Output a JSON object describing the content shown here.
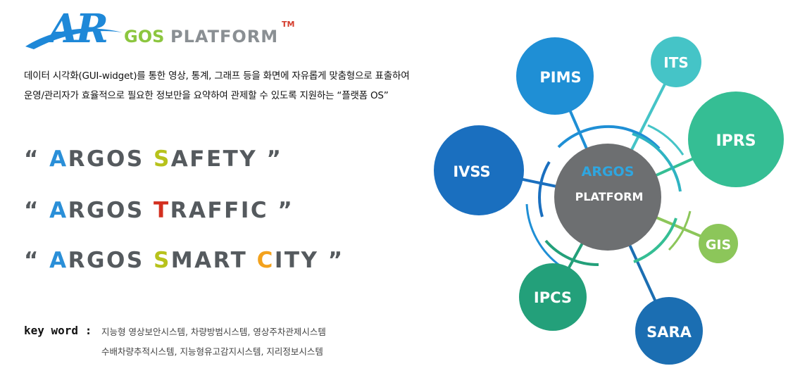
{
  "logo": {
    "mark": "AR",
    "brand_rest": "GOS",
    "brand_word": "PLATFORM",
    "trademark": "TM"
  },
  "description": {
    "line1": "데이터 시각화(GUI-widget)를 통한 영상, 통계, 그래프 등을 화면에 자유롭게 맞춤형으로 표출하여",
    "line2": "운영/관리자가 효율적으로 필요한 정보만을 요약하여 관제할 수 있도록 지원하는 “플랫폼 OS”"
  },
  "slogans": [
    {
      "open": "“ ",
      "a": "A",
      "mid": "RGOS ",
      "key": "S",
      "rest": "AFETY",
      "close": " ”"
    },
    {
      "open": "“ ",
      "a": "A",
      "mid": "RGOS ",
      "key": "T",
      "rest": "RAFFIC",
      "close": " ”"
    },
    {
      "open": "“ ",
      "a": "A",
      "mid": "RGOS ",
      "key": "S",
      "rest": "MART ",
      "key2": "C",
      "rest2": "ITY",
      "close": " ”"
    }
  ],
  "keywords": {
    "label": "key word :",
    "line1": "지능형 영상보안시스템, 차량방범시스템, 영상주차관제시스템",
    "line2": "수배차량추적시스템, 지능형유고감지시스템, 지리정보시스템"
  },
  "diagram": {
    "center_line1": "ARGOS",
    "center_line2": "PLATFORM",
    "nodes": {
      "pims": "PIMS",
      "its": "ITS",
      "iprs": "IPRS",
      "ivss": "IVSS",
      "gis": "GIS",
      "ipcs": "IPCS",
      "sara": "SARA"
    }
  },
  "colors": {
    "logo_blue": "#1e88d8",
    "logo_green": "#8cc63f",
    "logo_gray": "#8a8f93",
    "center": "#6d6f71",
    "pims": "#1f8fd5",
    "its": "#45c4c7",
    "iprs": "#35be94",
    "ivss": "#1a6fbf",
    "gis": "#8cc65a",
    "ipcs": "#23a07a",
    "sara": "#1b6eb2"
  }
}
